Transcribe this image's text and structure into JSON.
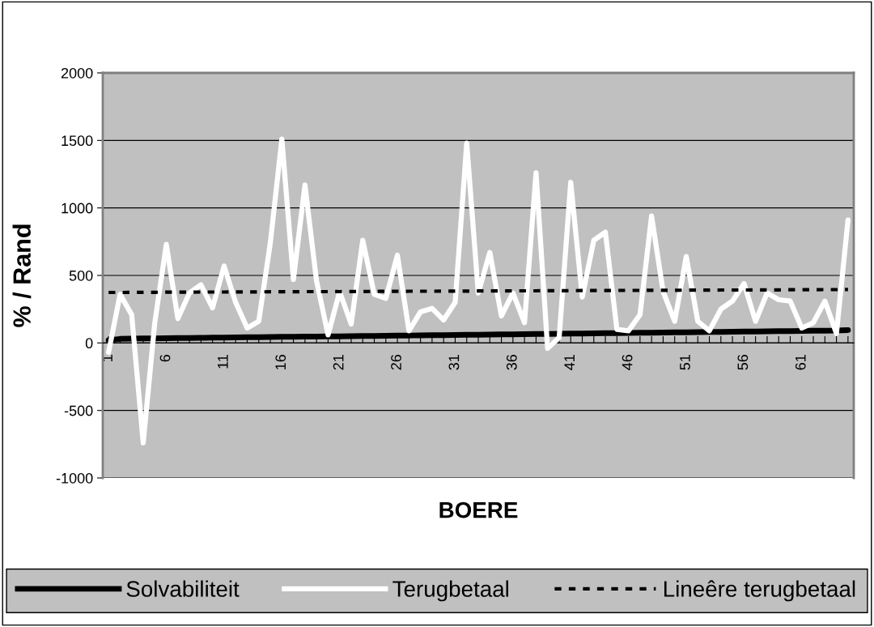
{
  "chart_data": {
    "type": "line",
    "xlabel": "BOERE",
    "ylabel": "% / Rand",
    "categories": [
      "1",
      null,
      null,
      null,
      null,
      "6",
      null,
      null,
      null,
      null,
      "11",
      null,
      null,
      null,
      null,
      "16",
      null,
      null,
      null,
      null,
      "21",
      null,
      null,
      null,
      null,
      "26",
      null,
      null,
      null,
      null,
      "31",
      null,
      null,
      null,
      null,
      "36",
      null,
      null,
      null,
      null,
      "41",
      null,
      null,
      null,
      null,
      "46",
      null,
      null,
      null,
      null,
      "51",
      null,
      null,
      null,
      null,
      "56",
      null,
      null,
      null,
      null,
      "61",
      null,
      null,
      null,
      null
    ],
    "series": [
      {
        "name": "Solvabiliteit",
        "color": "#000000",
        "line_style": "solid",
        "values": [
          20,
          30,
          32,
          33,
          34,
          35,
          36,
          37,
          38,
          39,
          40,
          41,
          42,
          43,
          44,
          45,
          46,
          47,
          47,
          48,
          49,
          50,
          51,
          52,
          53,
          54,
          55,
          56,
          57,
          58,
          59,
          60,
          61,
          62,
          63,
          64,
          65,
          66,
          67,
          68,
          69,
          70,
          71,
          72,
          73,
          74,
          75,
          76,
          77,
          78,
          79,
          80,
          81,
          82,
          83,
          84,
          85,
          86,
          87,
          88,
          89,
          90,
          91,
          92,
          95
        ]
      },
      {
        "name": "Terugbetaal",
        "color": "#ffffff",
        "line_style": "solid",
        "values": [
          -70,
          360,
          210,
          -740,
          150,
          730,
          180,
          370,
          430,
          260,
          570,
          300,
          110,
          160,
          740,
          1510,
          470,
          1170,
          460,
          60,
          380,
          140,
          760,
          360,
          330,
          650,
          90,
          230,
          256,
          170,
          300,
          1480,
          370,
          670,
          200,
          370,
          150,
          1260,
          -40,
          40,
          1190,
          340,
          760,
          820,
          100,
          90,
          210,
          940,
          380,
          160,
          640,
          160,
          90,
          250,
          310,
          440,
          160,
          370,
          320,
          310,
          110,
          150,
          310,
          70,
          910
        ]
      },
      {
        "name": "Lineêre terugbetaal",
        "color": "#000000",
        "line_style": "dashed",
        "values": [
          374,
          374,
          375,
          375,
          375,
          376,
          376,
          376,
          377,
          377,
          377,
          378,
          378,
          378,
          379,
          379,
          379,
          380,
          380,
          380,
          381,
          381,
          381,
          382,
          382,
          382,
          383,
          383,
          383,
          384,
          384,
          384,
          385,
          385,
          385,
          386,
          386,
          386,
          387,
          387,
          387,
          388,
          388,
          388,
          389,
          389,
          389,
          390,
          390,
          390,
          391,
          391,
          391,
          392,
          392,
          392,
          393,
          393,
          393,
          394,
          394,
          394,
          395,
          395,
          396
        ]
      }
    ],
    "ylim": [
      -1000,
      2000
    ],
    "yticks": [
      -1000,
      -500,
      0,
      500,
      1000,
      1500,
      2000
    ],
    "grid": "y",
    "legend": "bottom"
  }
}
